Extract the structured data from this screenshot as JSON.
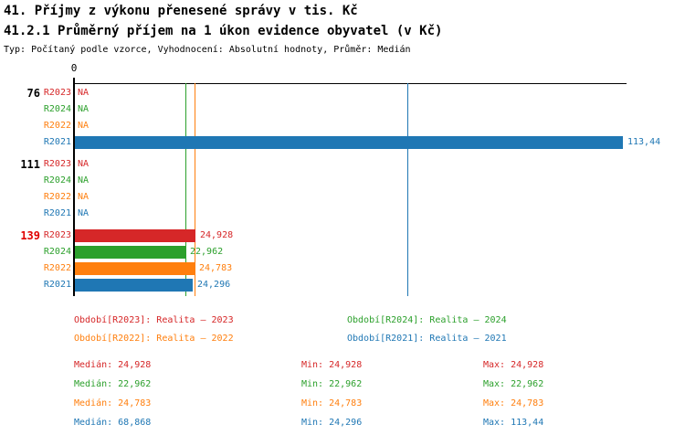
{
  "page": {
    "title_line1": "41. Příjmy z výkonu přenesené správy v tis. Kč",
    "title_line2": "41.2.1 Průměrný příjem na 1 úkon evidence obyvatel (v Kč)",
    "subtitle": "Typ: Počítaný podle vzorce, Vyhodnocení: Absolutní hodnoty, Průměr: Medián"
  },
  "colors": {
    "R2023": "#d62728",
    "R2024": "#2ca02c",
    "R2022": "#ff7f0e",
    "R2021": "#1f77b4",
    "highlight_group_label": "#e00000",
    "normal_group_label": "#000000",
    "axis": "#000000"
  },
  "chart_data": {
    "type": "bar",
    "orientation": "horizontal",
    "title": "41. Příjmy z výkonu přenesené správy v tis. Kč",
    "subtitle": "41.2.1 Průměrný příjem na 1 úkon evidence obyvatel (v Kč)",
    "note": "Typ: Počítaný podle vzorce, Vyhodnocení: Absolutní hodnoty, Průměr: Medián",
    "x_axis": {
      "zero_label": "0",
      "min": 0,
      "max": 113.44,
      "grid": false
    },
    "series_order": [
      "R2023",
      "R2024",
      "R2022",
      "R2021"
    ],
    "groups": [
      {
        "label": "76",
        "highlighted": false,
        "bars": [
          {
            "series": "R2023",
            "value": null,
            "display": "NA"
          },
          {
            "series": "R2024",
            "value": null,
            "display": "NA"
          },
          {
            "series": "R2022",
            "value": null,
            "display": "NA"
          },
          {
            "series": "R2021",
            "value": 113.44,
            "display": "113,44"
          }
        ]
      },
      {
        "label": "111",
        "highlighted": false,
        "bars": [
          {
            "series": "R2023",
            "value": null,
            "display": "NA"
          },
          {
            "series": "R2024",
            "value": null,
            "display": "NA"
          },
          {
            "series": "R2022",
            "value": null,
            "display": "NA"
          },
          {
            "series": "R2021",
            "value": null,
            "display": "NA"
          }
        ]
      },
      {
        "label": "139",
        "highlighted": true,
        "bars": [
          {
            "series": "R2023",
            "value": 24.928,
            "display": "24,928"
          },
          {
            "series": "R2024",
            "value": 22.962,
            "display": "22,962"
          },
          {
            "series": "R2022",
            "value": 24.783,
            "display": "24,783"
          },
          {
            "series": "R2021",
            "value": 24.296,
            "display": "24,296"
          }
        ]
      }
    ],
    "median_lines": [
      {
        "series": "R2023",
        "value": 24.928
      },
      {
        "series": "R2024",
        "value": 22.962
      },
      {
        "series": "R2022",
        "value": 24.783
      },
      {
        "series": "R2021",
        "value": 68.868
      }
    ],
    "legend": [
      {
        "series": "R2023",
        "label": "Období[R2023]: Realita – 2023"
      },
      {
        "series": "R2024",
        "label": "Období[R2024]: Realita – 2024"
      },
      {
        "series": "R2022",
        "label": "Období[R2022]: Realita – 2022"
      },
      {
        "series": "R2021",
        "label": "Období[R2021]: Realita – 2021"
      }
    ],
    "stats": [
      {
        "series": "R2023",
        "median": "Medián: 24,928",
        "min": "Min: 24,928",
        "max": "Max: 24,928"
      },
      {
        "series": "R2024",
        "median": "Medián: 22,962",
        "min": "Min: 22,962",
        "max": "Max: 22,962"
      },
      {
        "series": "R2022",
        "median": "Medián: 24,783",
        "min": "Min: 24,783",
        "max": "Max: 24,783"
      },
      {
        "series": "R2021",
        "median": "Medián: 68,868",
        "min": "Min: 24,296",
        "max": "Max: 113,44"
      }
    ]
  }
}
